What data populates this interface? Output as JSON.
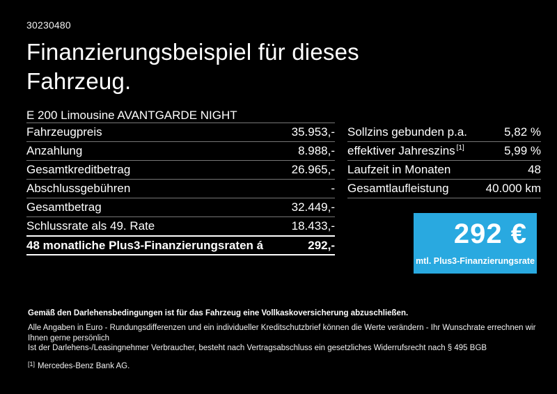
{
  "page": {
    "ref_number": "30230480",
    "title": "Finanzierungsbeispiel für dieses Fahrzeug.",
    "vehicle": "E 200 Limousine AVANTGARDE NIGHT"
  },
  "finance_table": {
    "rows": [
      {
        "label": "Fahrzeugpreis",
        "value": "35.953,-"
      },
      {
        "label": "Anzahlung",
        "value": "8.988,-"
      },
      {
        "label": "Gesamtkreditbetrag",
        "value": "26.965,-"
      },
      {
        "label": "Abschlussgebühren",
        "value": "-"
      },
      {
        "label": "Gesamtbetrag",
        "value": "32.449,-"
      },
      {
        "label": "Schlussrate als 49. Rate",
        "value": "18.433,-"
      }
    ],
    "highlight_row": {
      "label": "48 monatliche Plus3-Finanzierungsraten á",
      "value": "292,-"
    }
  },
  "conditions_table": {
    "rows": [
      {
        "label": "Sollzins gebunden p.a.",
        "sup": "",
        "value": "5,82 %"
      },
      {
        "label": "effektiver Jahreszins",
        "sup": "[1]",
        "value": "5,99 %"
      },
      {
        "label": "Laufzeit in Monaten",
        "sup": "",
        "value": "48"
      },
      {
        "label": "Gesamtlaufleistung",
        "sup": "",
        "value": "40.000 km"
      }
    ]
  },
  "rate_box": {
    "amount": "292 €",
    "caption": "mtl. Plus3-Finanzierungsrate",
    "background": "#29a9e0"
  },
  "footer": {
    "bold_note": "Gemäß den Darlehensbedingungen ist für das Fahrzeug eine Vollkaskoversicherung abzuschließen.",
    "notes": [
      "Alle Angaben in Euro - Rundungsdifferenzen und ein individueller Kreditschutzbrief können die Werte verändern - Ihr Wunschrate errechnen wir Ihnen gerne persönlich",
      "Ist der Darlehens-/Leasingnehmer Verbraucher, besteht nach Vertragsabschluss ein gesetzliches Widerrufsrecht nach § 495 BGB"
    ],
    "footnote_sup": "[1]",
    "footnote_text": "Mercedes-Benz Bank AG."
  }
}
